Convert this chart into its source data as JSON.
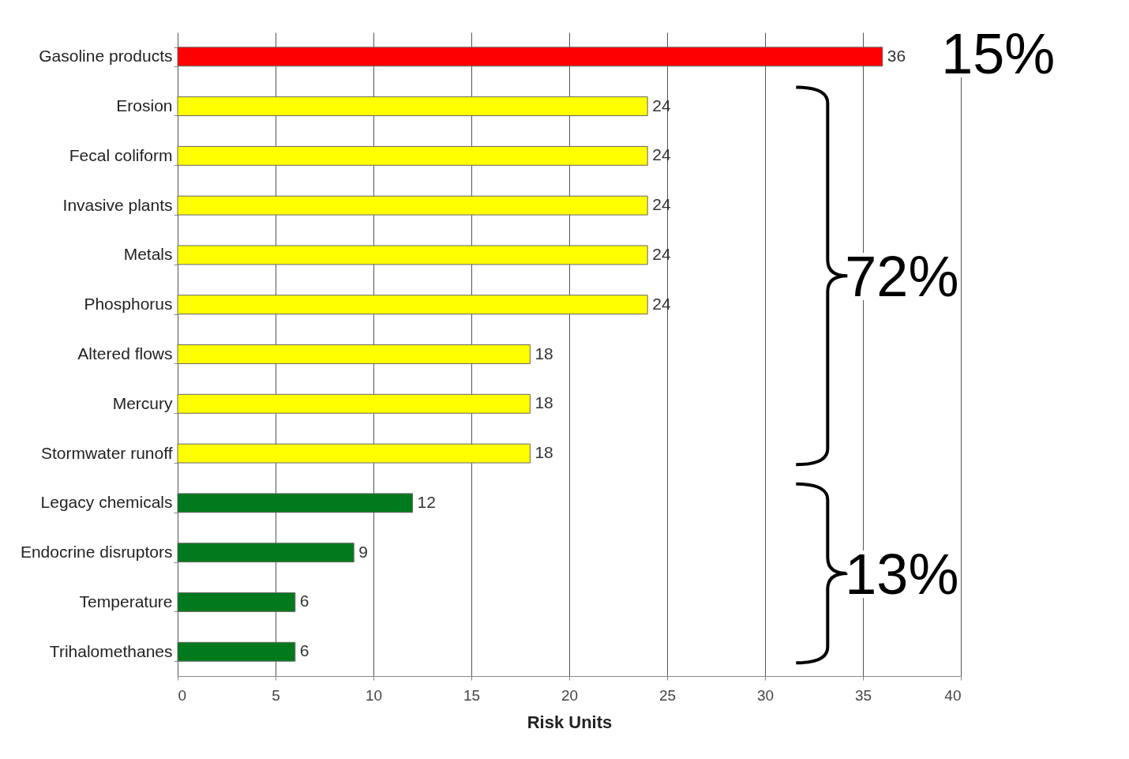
{
  "chart_data": {
    "type": "bar",
    "orientation": "horizontal",
    "categories": [
      "Gasoline products",
      "Erosion",
      "Fecal coliform",
      "Invasive plants",
      "Metals",
      "Phosphorus",
      "Altered flows",
      "Mercury",
      "Stormwater runoff",
      "Legacy chemicals",
      "Endocrine disruptors",
      "Temperature",
      "Trihalomethanes"
    ],
    "values": [
      36,
      24,
      24,
      24,
      24,
      24,
      18,
      18,
      18,
      12,
      9,
      6,
      6
    ],
    "colors": [
      "#ff0000",
      "#ffff00",
      "#ffff00",
      "#ffff00",
      "#ffff00",
      "#ffff00",
      "#ffff00",
      "#ffff00",
      "#ffff00",
      "#007a1c",
      "#007a1c",
      "#007a1c",
      "#007a1c"
    ],
    "xlim": [
      0,
      40
    ],
    "xticks": [
      0,
      5,
      10,
      15,
      20,
      25,
      30,
      35,
      40
    ],
    "xlabel": "Risk Units",
    "grid": "x",
    "data_labels": true,
    "annotations": [
      "15%",
      "72%",
      "13%"
    ]
  }
}
